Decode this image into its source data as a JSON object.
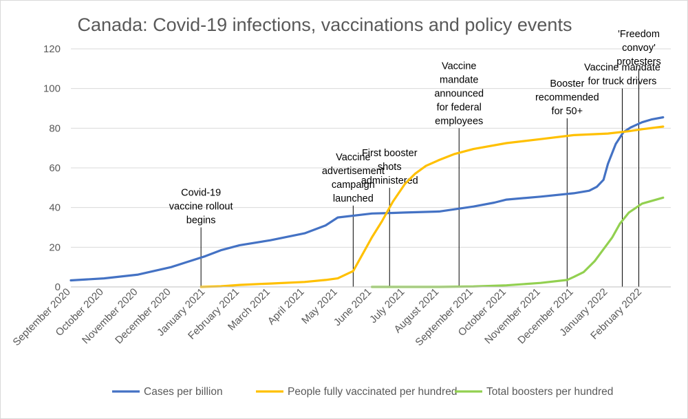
{
  "chart_data": {
    "type": "line",
    "title": "Canada: Covid-19 infections, vaccinations and policy events",
    "xlabel": "",
    "ylabel": "",
    "ylim": [
      0,
      120
    ],
    "yticks": [
      0,
      20,
      40,
      60,
      80,
      100,
      120
    ],
    "grid": "horizontal",
    "legend_position": "bottom",
    "x_tick_labels": [
      "September 2020",
      "October 2020",
      "November 2020",
      "December 2020",
      "January 2021",
      "February 2021",
      "March 2021",
      "April 2021",
      "May 2021",
      "June 2021",
      "July 2021",
      "August 2021",
      "September 2021",
      "October 2021",
      "November 2021",
      "December 2021",
      "January 2022",
      "February 2022"
    ],
    "series": [
      {
        "name": "Cases per billion",
        "color": "#4472C4",
        "x": [
          "2020-09-01",
          "2020-10-01",
          "2020-11-01",
          "2020-12-01",
          "2020-12-15",
          "2021-01-01",
          "2021-01-15",
          "2021-02-01",
          "2021-03-01",
          "2021-04-01",
          "2021-04-20",
          "2021-05-01",
          "2021-06-01",
          "2021-06-20",
          "2021-07-01",
          "2021-08-01",
          "2021-09-01",
          "2021-09-20",
          "2021-10-01",
          "2021-11-01",
          "2021-12-01",
          "2021-12-15",
          "2021-12-22",
          "2021-12-28",
          "2022-01-01",
          "2022-01-08",
          "2022-01-15",
          "2022-01-22",
          "2022-02-01",
          "2022-02-10",
          "2022-02-20"
        ],
        "y": [
          3.3,
          4.3,
          6.2,
          10,
          12.5,
          15.5,
          18.5,
          21,
          23.5,
          27,
          31,
          35,
          37,
          37.3,
          37.5,
          38,
          40.5,
          42.5,
          44,
          45.5,
          47.2,
          48.5,
          50.5,
          54,
          62,
          72,
          78,
          80.5,
          83,
          84.5,
          85.5
        ]
      },
      {
        "name": "People fully vaccinated per hundred",
        "color": "#FFC000",
        "x": [
          "2020-12-28",
          "2021-01-15",
          "2021-02-01",
          "2021-02-20",
          "2021-03-01",
          "2021-04-01",
          "2021-04-20",
          "2021-05-01",
          "2021-05-15",
          "2021-05-25",
          "2021-06-01",
          "2021-06-10",
          "2021-06-20",
          "2021-07-01",
          "2021-07-10",
          "2021-07-20",
          "2021-08-01",
          "2021-08-15",
          "2021-09-01",
          "2021-10-01",
          "2021-11-01",
          "2021-12-01",
          "2022-01-01",
          "2022-01-20",
          "2022-02-01",
          "2022-02-20"
        ],
        "y": [
          0,
          0.3,
          1,
          1.5,
          1.7,
          2.5,
          3.5,
          4.3,
          8,
          18,
          25,
          33,
          43,
          52,
          57,
          61,
          64,
          67,
          69.5,
          72.5,
          74.5,
          76.5,
          77.3,
          78.5,
          79.5,
          80.8
        ]
      },
      {
        "name": "Total boosters per hundred",
        "color": "#92D050",
        "x": [
          "2021-06-01",
          "2021-08-01",
          "2021-09-01",
          "2021-10-01",
          "2021-11-01",
          "2021-11-25",
          "2021-12-01",
          "2021-12-10",
          "2021-12-20",
          "2021-12-28",
          "2022-01-05",
          "2022-01-12",
          "2022-01-20",
          "2022-02-01",
          "2022-02-20"
        ],
        "y": [
          0,
          0,
          0.2,
          0.8,
          2,
          3.5,
          5,
          7.5,
          13,
          19,
          25,
          32,
          37.5,
          42,
          45
        ]
      }
    ],
    "annotations": [
      {
        "date": "2020-12-28",
        "label": [
          "Covid-19",
          "vaccine rollout",
          "begins"
        ],
        "line_top": 30
      },
      {
        "date": "2021-05-15",
        "label": [
          "Vaccine",
          "advertisement",
          "campaign",
          "launched"
        ],
        "line_top": 41
      },
      {
        "date": "2021-06-17",
        "label": [
          "First booster",
          "shots",
          "administered"
        ],
        "line_top": 50
      },
      {
        "date": "2021-08-19",
        "label": [
          "Vaccine",
          "mandate",
          "announced",
          "for federal",
          "employees"
        ],
        "line_top": 80
      },
      {
        "date": "2021-11-25",
        "label": [
          "Booster",
          "recommended",
          "for 50+"
        ],
        "line_top": 85
      },
      {
        "date": "2022-01-14",
        "label": [
          "Vaccine mandate",
          "for truck drivers"
        ],
        "line_top": 100
      },
      {
        "date": "2022-01-29",
        "label": [
          "'Freedom",
          "convoy'",
          "protesters"
        ],
        "line_top": 110
      }
    ]
  }
}
